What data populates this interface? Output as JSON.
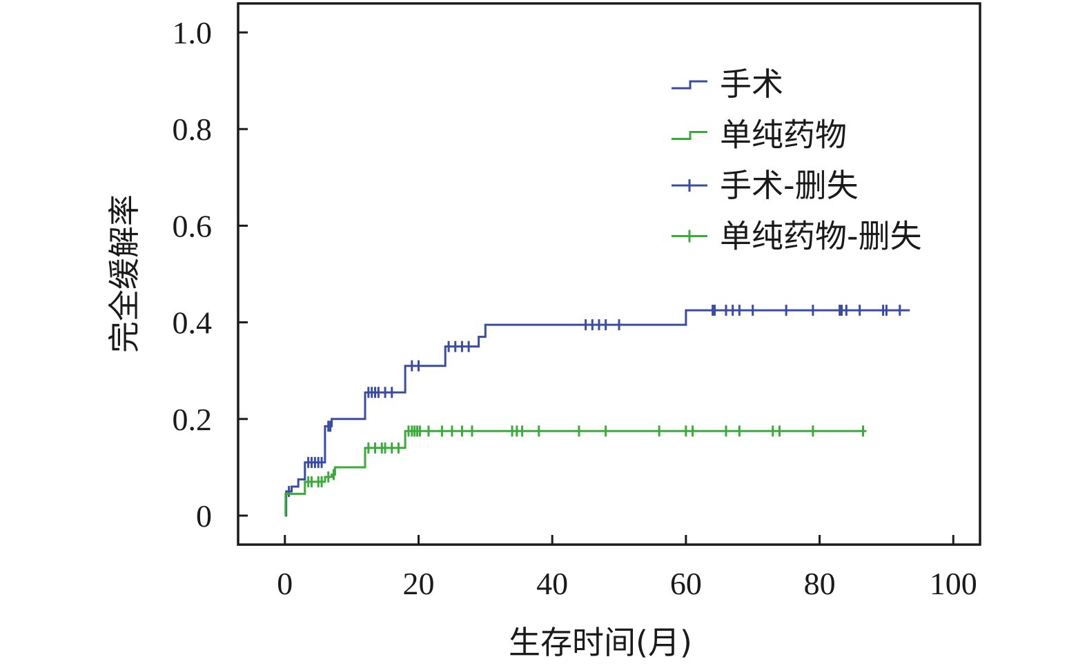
{
  "chart_data": {
    "type": "line",
    "subtype": "kaplan-meier-step",
    "xlabel": "生存时间(月)",
    "ylabel": "完全缓解率",
    "xlim": [
      -7,
      104
    ],
    "ylim": [
      -0.06,
      1.06
    ],
    "xticks": [
      0,
      20,
      40,
      60,
      80,
      100
    ],
    "yticks": [
      0,
      0.2,
      0.4,
      0.6,
      0.8,
      1.0
    ],
    "xtick_labels": [
      "0",
      "20",
      "40",
      "60",
      "80",
      "100"
    ],
    "ytick_labels": [
      "0",
      "0.2",
      "0.4",
      "0.6",
      "0.8",
      "1.0"
    ],
    "grid": false,
    "legend_position": "top-right",
    "colors": {
      "surgery": "#3a4ba3",
      "medication": "#3aaa3a",
      "axis": "#1a1a1a"
    },
    "legend": [
      {
        "label": "手术",
        "series": "surgery",
        "marker": "step"
      },
      {
        "label": "单纯药物",
        "series": "medication",
        "marker": "step"
      },
      {
        "label": "手术-删失",
        "series": "surgery",
        "marker": "censor"
      },
      {
        "label": "单纯药物-删失",
        "series": "medication",
        "marker": "censor"
      }
    ],
    "series": [
      {
        "name": "手术",
        "color": "#3a4ba3",
        "steps": [
          [
            0,
            0.0
          ],
          [
            0.2,
            0.05
          ],
          [
            1.0,
            0.06
          ],
          [
            2.0,
            0.075
          ],
          [
            3.0,
            0.11
          ],
          [
            6.0,
            0.185
          ],
          [
            7.0,
            0.2
          ],
          [
            12.0,
            0.255
          ],
          [
            18.0,
            0.31
          ],
          [
            24.0,
            0.35
          ],
          [
            29.0,
            0.37
          ],
          [
            30.0,
            0.395
          ],
          [
            60.0,
            0.425
          ]
        ],
        "end_x": 93.5,
        "censored": [
          [
            0.6,
            0.05
          ],
          [
            3.5,
            0.11
          ],
          [
            4.0,
            0.11
          ],
          [
            4.5,
            0.11
          ],
          [
            5.0,
            0.11
          ],
          [
            5.5,
            0.11
          ],
          [
            6.5,
            0.185
          ],
          [
            6.8,
            0.185
          ],
          [
            12.5,
            0.255
          ],
          [
            13.0,
            0.255
          ],
          [
            13.5,
            0.255
          ],
          [
            14.0,
            0.255
          ],
          [
            15.0,
            0.255
          ],
          [
            16.0,
            0.255
          ],
          [
            19.0,
            0.31
          ],
          [
            20.0,
            0.31
          ],
          [
            24.5,
            0.35
          ],
          [
            25.5,
            0.35
          ],
          [
            26.5,
            0.35
          ],
          [
            27.5,
            0.35
          ],
          [
            45.0,
            0.395
          ],
          [
            46.0,
            0.395
          ],
          [
            47.0,
            0.395
          ],
          [
            48.0,
            0.395
          ],
          [
            50.0,
            0.395
          ],
          [
            64.0,
            0.425
          ],
          [
            64.3,
            0.425
          ],
          [
            66.0,
            0.425
          ],
          [
            67.0,
            0.425
          ],
          [
            68.0,
            0.425
          ],
          [
            70.0,
            0.425
          ],
          [
            75.0,
            0.425
          ],
          [
            79.0,
            0.425
          ],
          [
            83.0,
            0.425
          ],
          [
            83.3,
            0.425
          ],
          [
            84.0,
            0.425
          ],
          [
            86.0,
            0.425
          ],
          [
            89.5,
            0.425
          ],
          [
            90.0,
            0.425
          ],
          [
            92.0,
            0.425
          ]
        ]
      },
      {
        "name": "单纯药物",
        "color": "#3aaa3a",
        "steps": [
          [
            0,
            0.0
          ],
          [
            0.1,
            0.045
          ],
          [
            3.0,
            0.07
          ],
          [
            6.0,
            0.08
          ],
          [
            7.0,
            0.085
          ],
          [
            7.5,
            0.1
          ],
          [
            12.0,
            0.14
          ],
          [
            18.0,
            0.175
          ]
        ],
        "end_x": 87.0,
        "censored": [
          [
            3.5,
            0.07
          ],
          [
            4.0,
            0.07
          ],
          [
            5.0,
            0.07
          ],
          [
            5.5,
            0.07
          ],
          [
            6.5,
            0.08
          ],
          [
            7.3,
            0.085
          ],
          [
            12.5,
            0.14
          ],
          [
            13.5,
            0.14
          ],
          [
            14.5,
            0.14
          ],
          [
            15.0,
            0.14
          ],
          [
            16.0,
            0.14
          ],
          [
            17.0,
            0.14
          ],
          [
            18.5,
            0.175
          ],
          [
            19.0,
            0.175
          ],
          [
            19.4,
            0.175
          ],
          [
            19.8,
            0.175
          ],
          [
            20.2,
            0.175
          ],
          [
            21.5,
            0.175
          ],
          [
            23.5,
            0.175
          ],
          [
            25.0,
            0.175
          ],
          [
            26.5,
            0.175
          ],
          [
            28.0,
            0.175
          ],
          [
            34.0,
            0.175
          ],
          [
            34.7,
            0.175
          ],
          [
            35.5,
            0.175
          ],
          [
            38.0,
            0.175
          ],
          [
            44.0,
            0.175
          ],
          [
            48.0,
            0.175
          ],
          [
            56.0,
            0.175
          ],
          [
            60.0,
            0.175
          ],
          [
            61.0,
            0.175
          ],
          [
            66.0,
            0.175
          ],
          [
            68.0,
            0.175
          ],
          [
            73.0,
            0.175
          ],
          [
            74.0,
            0.175
          ],
          [
            79.0,
            0.175
          ],
          [
            86.5,
            0.175
          ]
        ]
      }
    ]
  }
}
